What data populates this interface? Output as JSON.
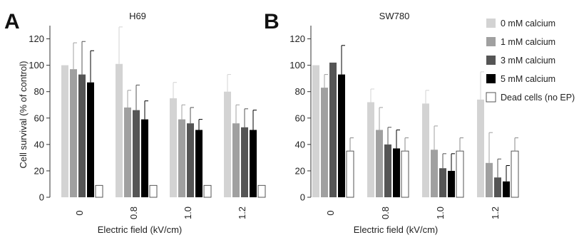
{
  "chart_data": [
    {
      "type": "bar",
      "panel_label": "A",
      "title": "H69",
      "xlabel": "Electric field (kV/cm)",
      "ylabel": "Cell survival (% of control)",
      "ylim": [
        0,
        130
      ],
      "yticks": [
        0,
        20,
        40,
        60,
        80,
        100,
        120
      ],
      "categories": [
        "0",
        "0.8",
        "1.0",
        "1.2"
      ],
      "series": [
        {
          "name": "0 mM calcium",
          "color": "#d3d3d3",
          "values": [
            100,
            101,
            75,
            80
          ],
          "errors": [
            0,
            28,
            12,
            13
          ]
        },
        {
          "name": "1 mM calcium",
          "color": "#a0a0a0",
          "values": [
            97,
            68,
            59,
            56
          ],
          "errors": [
            20,
            13,
            11,
            14
          ]
        },
        {
          "name": "3 mM calcium",
          "color": "#555555",
          "values": [
            93,
            66,
            56,
            53
          ],
          "errors": [
            25,
            19,
            12,
            14
          ]
        },
        {
          "name": "5 mM calcium",
          "color": "#000000",
          "values": [
            87,
            59,
            51,
            51
          ],
          "errors": [
            24,
            14,
            8,
            15
          ]
        },
        {
          "name": "Dead cells (no EP)",
          "color": "#ffffff",
          "values": [
            9,
            9,
            9,
            9
          ],
          "errors": [
            0,
            0,
            0,
            0
          ]
        }
      ]
    },
    {
      "type": "bar",
      "panel_label": "B",
      "title": "SW780",
      "xlabel": "Electric field (kV/cm)",
      "ylabel": "",
      "ylim": [
        0,
        130
      ],
      "yticks": [
        0,
        20,
        40,
        60,
        80,
        100,
        120
      ],
      "categories": [
        "0",
        "0.8",
        "1.0",
        "1.2"
      ],
      "series": [
        {
          "name": "0 mM calcium",
          "color": "#d3d3d3",
          "values": [
            100,
            72,
            71,
            74
          ],
          "errors": [
            0,
            10,
            10,
            21
          ]
        },
        {
          "name": "1 mM calcium",
          "color": "#a0a0a0",
          "values": [
            83,
            51,
            36,
            26
          ],
          "errors": [
            10,
            17,
            18,
            23
          ]
        },
        {
          "name": "3 mM calcium",
          "color": "#555555",
          "values": [
            102,
            40,
            22,
            15
          ],
          "errors": [
            0,
            13,
            11,
            14
          ]
        },
        {
          "name": "5 mM calcium",
          "color": "#000000",
          "values": [
            93,
            37,
            20,
            12
          ],
          "errors": [
            22,
            14,
            13,
            12
          ]
        },
        {
          "name": "Dead cells (no EP)",
          "color": "#ffffff",
          "values": [
            35,
            35,
            35,
            35
          ],
          "errors": [
            10,
            10,
            10,
            10
          ]
        }
      ]
    }
  ],
  "legend": {
    "placement": "right",
    "items": [
      {
        "label": "0 mM calcium",
        "color": "#d3d3d3"
      },
      {
        "label": "1 mM calcium",
        "color": "#a0a0a0"
      },
      {
        "label": "3 mM calcium",
        "color": "#555555"
      },
      {
        "label": "5 mM calcium",
        "color": "#000000"
      },
      {
        "label": "Dead cells (no EP)",
        "color": "#ffffff"
      }
    ]
  }
}
